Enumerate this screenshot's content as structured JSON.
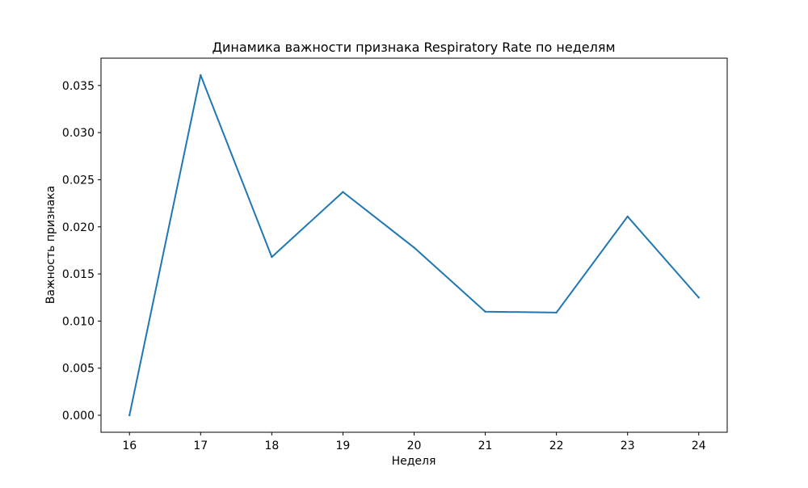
{
  "chart_data": {
    "type": "line",
    "title": "Динамика важности признака Respiratory Rate по неделям",
    "xlabel": "Неделя",
    "ylabel": "Важность признака",
    "x": [
      16,
      17,
      18,
      19,
      20,
      21,
      22,
      23,
      24
    ],
    "series": [
      {
        "color": "#1f77b4",
        "values": [
          0.0,
          0.0361,
          0.0168,
          0.0237,
          0.0178,
          0.011,
          0.0109,
          0.0211,
          0.0125
        ]
      }
    ],
    "xlim": [
      15.6,
      24.4
    ],
    "ylim": [
      -0.0018,
      0.0379
    ],
    "xticks": [
      "16",
      "17",
      "18",
      "19",
      "20",
      "21",
      "22",
      "23",
      "24"
    ],
    "yticks": [
      "0.000",
      "0.005",
      "0.010",
      "0.015",
      "0.020",
      "0.025",
      "0.030",
      "0.035"
    ],
    "grid": false,
    "legend": "none"
  }
}
